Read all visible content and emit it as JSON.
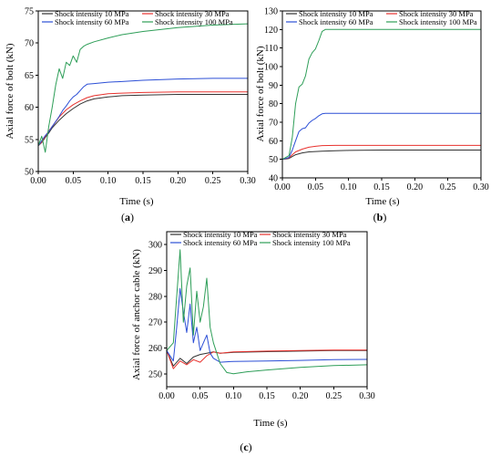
{
  "chart_data": [
    {
      "panel": "(a)",
      "panel_letter": "a",
      "type": "line",
      "xlabel": "Time (s)",
      "ylabel": "Axial force of  bolt (kN)",
      "xlim": [
        0,
        0.3
      ],
      "ylim": [
        50,
        75
      ],
      "xticks": [
        0.0,
        0.05,
        0.1,
        0.15,
        0.2,
        0.25,
        0.3
      ],
      "xtick_labels": [
        "0.00",
        "0.05",
        "0.10",
        "0.15",
        "0.20",
        "0.25",
        "0.30"
      ],
      "yticks": [
        50,
        55,
        60,
        65,
        70,
        75
      ],
      "legend_columns": 2,
      "series": [
        {
          "name": "Shock intensity 10 MPa",
          "color": "#333333",
          "x": [
            0,
            0.005,
            0.01,
            0.015,
            0.02,
            0.03,
            0.04,
            0.05,
            0.06,
            0.07,
            0.08,
            0.1,
            0.12,
            0.15,
            0.2,
            0.25,
            0.3
          ],
          "y": [
            54.0,
            54.5,
            55.3,
            56.0,
            56.8,
            58.0,
            59.0,
            59.8,
            60.5,
            61.0,
            61.3,
            61.6,
            61.8,
            61.9,
            62.0,
            62.0,
            62.0
          ]
        },
        {
          "name": "Shock intensity 30 MPa",
          "color": "#e8322e",
          "x": [
            0,
            0.005,
            0.01,
            0.015,
            0.02,
            0.03,
            0.04,
            0.05,
            0.06,
            0.07,
            0.08,
            0.1,
            0.12,
            0.15,
            0.2,
            0.25,
            0.3
          ],
          "y": [
            54.0,
            54.6,
            55.5,
            56.3,
            57.0,
            58.5,
            59.6,
            60.4,
            61.0,
            61.5,
            61.8,
            62.1,
            62.2,
            62.3,
            62.4,
            62.4,
            62.4
          ]
        },
        {
          "name": "Shock intensity 60 MPa",
          "color": "#2c4fd6",
          "x": [
            0,
            0.005,
            0.01,
            0.015,
            0.02,
            0.025,
            0.03,
            0.035,
            0.04,
            0.045,
            0.05,
            0.055,
            0.06,
            0.065,
            0.07,
            0.08,
            0.1,
            0.12,
            0.15,
            0.2,
            0.25,
            0.3
          ],
          "y": [
            54.0,
            54.8,
            55.6,
            56.2,
            57.0,
            57.8,
            58.6,
            59.5,
            60.2,
            61.0,
            61.6,
            62.0,
            62.6,
            63.2,
            63.6,
            63.7,
            63.9,
            64.0,
            64.2,
            64.4,
            64.5,
            64.5
          ]
        },
        {
          "name": "Shock intensity 100 MPa",
          "color": "#2e9e58",
          "x": [
            0,
            0.005,
            0.01,
            0.015,
            0.02,
            0.025,
            0.03,
            0.035,
            0.04,
            0.045,
            0.05,
            0.055,
            0.06,
            0.065,
            0.07,
            0.08,
            0.1,
            0.12,
            0.15,
            0.2,
            0.25,
            0.3
          ],
          "y": [
            54.0,
            55.5,
            53.0,
            57.0,
            60.0,
            63.5,
            66.0,
            64.5,
            67.0,
            66.5,
            68.0,
            67.0,
            69.0,
            69.5,
            69.8,
            70.2,
            70.8,
            71.3,
            71.8,
            72.4,
            72.8,
            73.0
          ]
        }
      ]
    },
    {
      "panel": "(b)",
      "panel_letter": "b",
      "type": "line",
      "xlabel": "Time (s)",
      "ylabel": "Axial force of  bolt (kN)",
      "xlim": [
        0,
        0.3
      ],
      "ylim": [
        40,
        130
      ],
      "xticks": [
        0.0,
        0.05,
        0.1,
        0.15,
        0.2,
        0.25,
        0.3
      ],
      "xtick_labels": [
        "0.00",
        "0.05",
        "0.10",
        "0.15",
        "0.20",
        "0.25",
        "0.30"
      ],
      "yticks": [
        40,
        50,
        60,
        70,
        80,
        90,
        100,
        110,
        120,
        130
      ],
      "legend_columns": 2,
      "series": [
        {
          "name": "Shock intensity 10 MPa",
          "color": "#333333",
          "x": [
            0,
            0.01,
            0.015,
            0.02,
            0.03,
            0.04,
            0.05,
            0.06,
            0.08,
            0.1,
            0.15,
            0.2,
            0.25,
            0.3
          ],
          "y": [
            50.0,
            50.5,
            51.5,
            52.5,
            53.5,
            54.0,
            54.2,
            54.4,
            54.6,
            54.8,
            55.0,
            55.0,
            55.0,
            55.0
          ]
        },
        {
          "name": "Shock intensity 30 MPa",
          "color": "#e8322e",
          "x": [
            0,
            0.01,
            0.015,
            0.02,
            0.03,
            0.04,
            0.05,
            0.06,
            0.08,
            0.1,
            0.15,
            0.2,
            0.25,
            0.3
          ],
          "y": [
            50.0,
            50.8,
            52.5,
            54.0,
            55.5,
            56.5,
            57.0,
            57.4,
            57.5,
            57.5,
            57.5,
            57.5,
            57.5,
            57.5
          ]
        },
        {
          "name": "Shock intensity 60 MPa",
          "color": "#2c4fd6",
          "x": [
            0,
            0.01,
            0.015,
            0.02,
            0.025,
            0.03,
            0.035,
            0.04,
            0.045,
            0.05,
            0.055,
            0.06,
            0.065,
            0.08,
            0.1,
            0.15,
            0.2,
            0.25,
            0.3
          ],
          "y": [
            50.0,
            51.0,
            55.0,
            60.0,
            65.0,
            66.5,
            67.0,
            69.5,
            71.0,
            72.0,
            73.5,
            74.5,
            74.8,
            74.8,
            74.8,
            74.8,
            74.8,
            74.8,
            74.8
          ]
        },
        {
          "name": "Shock intensity 100 MPa",
          "color": "#2e9e58",
          "x": [
            0,
            0.01,
            0.015,
            0.02,
            0.025,
            0.03,
            0.035,
            0.04,
            0.045,
            0.05,
            0.055,
            0.06,
            0.065,
            0.08,
            0.1,
            0.15,
            0.2,
            0.25,
            0.3
          ],
          "y": [
            50.0,
            52.0,
            62.0,
            80.0,
            89.0,
            90.5,
            95.0,
            104.0,
            107.5,
            109.5,
            114.0,
            119.0,
            120.0,
            120.0,
            120.0,
            120.0,
            120.0,
            120.0,
            120.0
          ]
        }
      ]
    },
    {
      "panel": "(c)",
      "panel_letter": "c",
      "type": "line",
      "xlabel": "Time (s)",
      "ylabel": "Axial force of anchor cable (kN)",
      "xlim": [
        0,
        0.3
      ],
      "ylim": [
        245,
        305
      ],
      "xticks": [
        0.0,
        0.05,
        0.1,
        0.15,
        0.2,
        0.25,
        0.3
      ],
      "xtick_labels": [
        "0.00",
        "0.05",
        "0.10",
        "0.15",
        "0.20",
        "0.25",
        "0.30"
      ],
      "yticks": [
        250,
        260,
        270,
        280,
        290,
        300
      ],
      "legend_columns": 2,
      "series": [
        {
          "name": "Shock intensity 10 MPa",
          "color": "#333333",
          "x": [
            0,
            0.01,
            0.02,
            0.03,
            0.04,
            0.05,
            0.06,
            0.07,
            0.08,
            0.1,
            0.15,
            0.2,
            0.25,
            0.3
          ],
          "y": [
            259.0,
            253.0,
            256.0,
            254.0,
            256.5,
            257.5,
            258.0,
            258.5,
            258.0,
            258.3,
            258.6,
            258.8,
            259.0,
            259.0
          ]
        },
        {
          "name": "Shock intensity 30 MPa",
          "color": "#e8322e",
          "x": [
            0,
            0.01,
            0.02,
            0.03,
            0.04,
            0.05,
            0.06,
            0.07,
            0.08,
            0.1,
            0.15,
            0.2,
            0.25,
            0.3
          ],
          "y": [
            259.0,
            252.0,
            255.0,
            253.5,
            255.5,
            254.5,
            257.0,
            258.5,
            258.0,
            258.5,
            258.8,
            259.0,
            259.2,
            259.2
          ]
        },
        {
          "name": "Shock intensity 60 MPa",
          "color": "#2c4fd6",
          "x": [
            0,
            0.01,
            0.015,
            0.02,
            0.025,
            0.03,
            0.035,
            0.04,
            0.045,
            0.05,
            0.055,
            0.06,
            0.065,
            0.07,
            0.08,
            0.1,
            0.15,
            0.2,
            0.25,
            0.3
          ],
          "y": [
            259.0,
            255.0,
            268.0,
            283.0,
            274.0,
            266.0,
            277.0,
            262.0,
            268.0,
            259.0,
            262.0,
            265.0,
            258.0,
            256.0,
            254.5,
            254.8,
            255.0,
            255.2,
            255.5,
            255.6
          ]
        },
        {
          "name": "Shock intensity 100 MPa",
          "color": "#2e9e58",
          "x": [
            0,
            0.01,
            0.015,
            0.02,
            0.025,
            0.03,
            0.035,
            0.04,
            0.045,
            0.05,
            0.055,
            0.06,
            0.065,
            0.07,
            0.08,
            0.09,
            0.1,
            0.12,
            0.15,
            0.2,
            0.25,
            0.3
          ],
          "y": [
            259.0,
            262.0,
            280.0,
            298.0,
            270.0,
            284.0,
            291.0,
            265.0,
            282.0,
            270.0,
            276.0,
            287.0,
            268.0,
            262.0,
            254.0,
            250.5,
            250.0,
            250.8,
            251.5,
            252.5,
            253.2,
            253.5
          ]
        }
      ]
    }
  ]
}
